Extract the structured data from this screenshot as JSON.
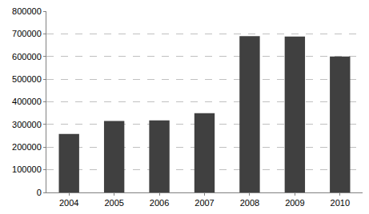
{
  "chart_data": {
    "type": "bar",
    "categories": [
      "2004",
      "2005",
      "2006",
      "2007",
      "2008",
      "2009",
      "2010"
    ],
    "values": [
      258000,
      315000,
      318000,
      350000,
      690000,
      688000,
      600000
    ],
    "color": "#404040",
    "ylim": [
      0,
      800000
    ],
    "yticks": [
      0,
      100000,
      200000,
      300000,
      400000,
      500000,
      600000,
      700000,
      800000
    ],
    "grid": true
  }
}
